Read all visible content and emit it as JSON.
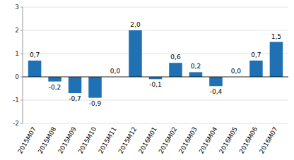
{
  "chart_data": {
    "type": "bar",
    "categories": [
      "2015M07",
      "2015M08",
      "2015M09",
      "2015M10",
      "2015M11",
      "2015M12",
      "2016M01",
      "2016M02",
      "2016M03",
      "2016M04",
      "2016M05",
      "2016M06",
      "2016M07"
    ],
    "values": [
      0.7,
      -0.2,
      -0.7,
      -0.9,
      0.0,
      2.0,
      -0.1,
      0.6,
      0.2,
      -0.4,
      0.0,
      0.7,
      1.5
    ],
    "value_labels": [
      "0,7",
      "-0,2",
      "-0,7",
      "-0,9",
      "0,0",
      "2,0",
      "-0,1",
      "0,6",
      "0,2",
      "-0,4",
      "0,0",
      "0,7",
      "1,5"
    ],
    "color": "#2070B4",
    "ylim": [
      -2,
      3
    ],
    "yticks": [
      -2,
      -1,
      0,
      1,
      2,
      3
    ],
    "grid": true,
    "data_labels": true
  }
}
